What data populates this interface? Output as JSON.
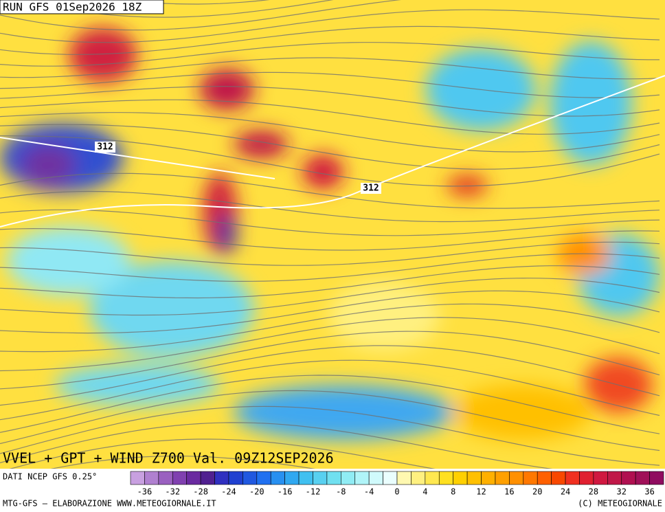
{
  "header": {
    "run": "RUN GFS 01Sep2026 18Z"
  },
  "contour_labels": [
    "312",
    "312"
  ],
  "map_title": "VVEL + GPT + WIND Z700 Val. 09Z12SEP2026",
  "source": "DATI NCEP GFS 0.25°",
  "colorbar": {
    "colors": [
      "#c8a0e0",
      "#b080d0",
      "#9a60c0",
      "#8040b0",
      "#6a2aa0",
      "#502090",
      "#3030c0",
      "#2040d0",
      "#2058e0",
      "#2070f0",
      "#2890f0",
      "#30a8f0",
      "#40c0f0",
      "#58d0f0",
      "#70e0f0",
      "#90ecf4",
      "#b0f4f8",
      "#d0fafc",
      "#eafefe",
      "#fff8b0",
      "#fff080",
      "#ffe850",
      "#ffe020",
      "#ffd000",
      "#ffc000",
      "#ffb000",
      "#ffa000",
      "#ff9000",
      "#ff7800",
      "#ff6000",
      "#f84800",
      "#f03020",
      "#e02030",
      "#d01840",
      "#c01848",
      "#b01050",
      "#a01058",
      "#900c60"
    ],
    "labels": [
      -36,
      -32,
      -28,
      -24,
      -20,
      -16,
      -12,
      -8,
      -4,
      0,
      4,
      8,
      12,
      16,
      20,
      24,
      28,
      32,
      36
    ]
  },
  "footer": {
    "left": "MTG-GFS – ELABORAZIONE WWW.METEOGIORNALE.IT",
    "right": "(C) METEOGIORNALE"
  }
}
